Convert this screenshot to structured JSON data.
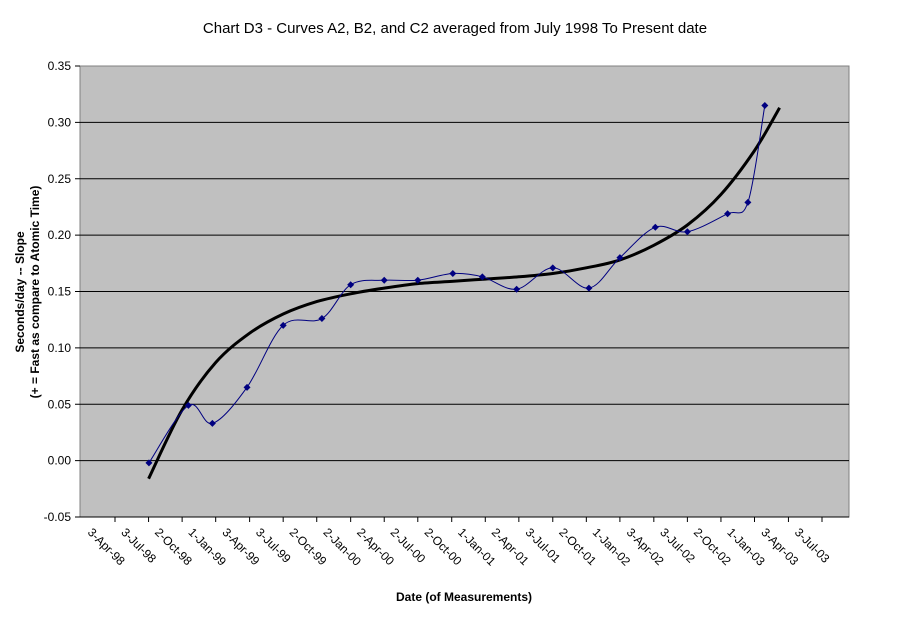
{
  "chart_data": {
    "type": "line",
    "title": "Chart D3 - Curves A2, B2, and C2 averaged from July 1998 To Present date",
    "xlabel": "Date (of Measurements)",
    "ylabel_line1": "Seconds/day -- Slope",
    "ylabel_line2": "(+ = Fast as compare to Atomic Time)",
    "ylim": [
      -0.05,
      0.35
    ],
    "y_ticks": [
      -0.05,
      0.0,
      0.05,
      0.1,
      0.15,
      0.2,
      0.25,
      0.3,
      0.35
    ],
    "y_tick_labels": [
      "-0.05",
      "0.00",
      "0.05",
      "0.10",
      "0.15",
      "0.20",
      "0.25",
      "0.30",
      "0.35"
    ],
    "xlim": [
      "1998-04-03",
      "2003-07-03"
    ],
    "x_ticks": [
      "1998-04-03",
      "1998-07-03",
      "1998-10-02",
      "1999-01-01",
      "1999-04-03",
      "1999-07-03",
      "1999-10-02",
      "2000-01-02",
      "2000-04-02",
      "2000-07-02",
      "2000-10-02",
      "2001-01-01",
      "2001-04-02",
      "2001-07-03",
      "2001-10-02",
      "2002-01-01",
      "2002-04-03",
      "2002-07-03",
      "2002-10-02",
      "2003-01-01",
      "2003-04-03",
      "2003-07-03"
    ],
    "x_tick_labels": [
      "3-Apr-98",
      "3-Jul-98",
      "2-Oct-98",
      "1-Jan-99",
      "3-Apr-99",
      "3-Jul-99",
      "2-Oct-99",
      "2-Jan-00",
      "2-Apr-00",
      "2-Jul-00",
      "2-Oct-00",
      "1-Jan-01",
      "2-Apr-01",
      "3-Jul-01",
      "2-Oct-01",
      "1-Jan-02",
      "3-Apr-02",
      "3-Jul-02",
      "2-Oct-02",
      "1-Jan-03",
      "3-Apr-03",
      "3-Jul-03"
    ],
    "grid": "horizontal",
    "series": [
      {
        "role": "measurements",
        "color": "#000080",
        "x": [
          "1998-07-04",
          "1998-10-19",
          "1998-12-23",
          "1999-03-27",
          "1999-07-03",
          "1999-10-16",
          "2000-01-02",
          "2000-04-02",
          "2000-07-02",
          "2000-10-05",
          "2000-12-24",
          "2001-03-27",
          "2001-07-03",
          "2001-10-09",
          "2002-01-01",
          "2002-04-07",
          "2002-07-03",
          "2002-10-20",
          "2002-12-14",
          "2003-01-29"
        ],
        "y": [
          -0.002,
          0.049,
          0.033,
          0.065,
          0.12,
          0.126,
          0.156,
          0.16,
          0.16,
          0.166,
          0.163,
          0.152,
          0.171,
          0.153,
          0.18,
          0.207,
          0.203,
          0.219,
          0.229,
          0.315
        ]
      },
      {
        "role": "trend",
        "color": "#000000",
        "x": [
          "1998-07-03",
          "1998-10-02",
          "1999-01-01",
          "1999-04-03",
          "1999-07-03",
          "1999-10-02",
          "2000-01-02",
          "2000-04-02",
          "2000-07-02",
          "2000-10-02",
          "2001-01-01",
          "2001-04-02",
          "2001-07-03",
          "2001-10-02",
          "2002-01-01",
          "2002-04-03",
          "2002-07-03",
          "2002-10-02",
          "2003-01-01",
          "2003-03-10"
        ],
        "y": [
          -0.016,
          0.045,
          0.087,
          0.113,
          0.13,
          0.141,
          0.148,
          0.153,
          0.157,
          0.159,
          0.161,
          0.163,
          0.166,
          0.171,
          0.178,
          0.191,
          0.209,
          0.236,
          0.275,
          0.313
        ]
      }
    ]
  },
  "colors": {
    "plot_bg": "#c0c0c0",
    "marker": "#000080",
    "trend": "#000000"
  }
}
